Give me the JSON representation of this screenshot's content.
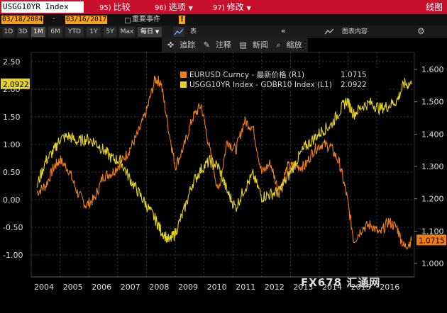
{
  "header": {
    "ticker": "USGG10YR Index",
    "menu": [
      {
        "num": "95)",
        "label": "比较"
      },
      {
        "num": "96)",
        "label": "选项"
      },
      {
        "num": "97)",
        "label": "修改"
      }
    ],
    "right_label": "线图"
  },
  "dates": {
    "start": "03/18/2004",
    "end": "03/16/2017",
    "dash": "-",
    "event_label": "重要事件"
  },
  "ranges": [
    "1D",
    "3D",
    "1M",
    "6M",
    "YTD",
    "1Y",
    "5Y",
    "Max"
  ],
  "active_range": "1M",
  "frequency": "每日",
  "table_label": "表",
  "legend_button": "图表内容",
  "toolbar": {
    "track": "追踪",
    "note": "注释",
    "news": "新闻",
    "zoom": "缩放"
  },
  "watermark": "FX678 汇通网",
  "colors": {
    "eurusd": "#f07d14",
    "gdbr": "#e6d220",
    "left_tag_bg": "#e6d220",
    "right_tag_bg": "#f07d14"
  },
  "chart_data": {
    "type": "line",
    "x_ticks": [
      "2004",
      "2005",
      "2006",
      "2007",
      "2008",
      "2009",
      "2010",
      "2011",
      "2012",
      "2013",
      "2014",
      "2015",
      "2016"
    ],
    "x": [
      2004.2,
      2004.5,
      2004.8,
      2005.0,
      2005.3,
      2005.6,
      2005.9,
      2006.2,
      2006.5,
      2006.8,
      2007.1,
      2007.4,
      2007.7,
      2008.0,
      2008.3,
      2008.5,
      2008.8,
      2009.0,
      2009.3,
      2009.6,
      2009.9,
      2010.2,
      2010.5,
      2010.8,
      2011.1,
      2011.4,
      2011.7,
      2012.0,
      2012.3,
      2012.6,
      2012.9,
      2013.2,
      2013.5,
      2013.8,
      2014.1,
      2014.4,
      2014.7,
      2014.95,
      2015.2,
      2015.5,
      2015.8,
      2016.1,
      2016.4,
      2016.7,
      2016.95,
      2017.2
    ],
    "series": [
      {
        "name": "EURUSD Curncy - 最新价格 (R1)",
        "axis": "right",
        "current": "1.0715",
        "values": [
          1.22,
          1.24,
          1.3,
          1.32,
          1.29,
          1.22,
          1.18,
          1.2,
          1.27,
          1.28,
          1.31,
          1.35,
          1.4,
          1.47,
          1.57,
          1.56,
          1.4,
          1.3,
          1.36,
          1.45,
          1.49,
          1.35,
          1.22,
          1.38,
          1.35,
          1.44,
          1.42,
          1.28,
          1.31,
          1.22,
          1.3,
          1.3,
          1.3,
          1.35,
          1.37,
          1.36,
          1.31,
          1.21,
          1.07,
          1.11,
          1.12,
          1.09,
          1.13,
          1.11,
          1.05,
          1.07
        ]
      },
      {
        "name": "USGG10YR Index - GDBR10 Index (L1)",
        "axis": "left",
        "current": "2.0922",
        "values": [
          0.25,
          0.7,
          0.9,
          1.1,
          1.15,
          1.05,
          1.1,
          1.05,
          0.9,
          0.75,
          0.7,
          0.4,
          0.15,
          -0.1,
          -0.35,
          -0.55,
          -0.75,
          -0.6,
          -0.2,
          0.3,
          0.55,
          0.7,
          0.6,
          0.15,
          -0.15,
          0.2,
          0.45,
          0.05,
          0.1,
          0.15,
          0.4,
          0.7,
          0.95,
          1.1,
          1.25,
          1.35,
          1.6,
          1.8,
          1.55,
          1.7,
          1.75,
          1.65,
          1.7,
          1.8,
          2.1,
          2.09
        ]
      }
    ],
    "y_left": {
      "ticks": [
        "2.50",
        "2.00",
        "1.50",
        "1.00",
        "0.50",
        "0.00",
        "-0.50",
        "-1.00"
      ],
      "min": -1.0,
      "max": 2.5
    },
    "y_right": {
      "ticks": [
        "1.600",
        "1.500",
        "1.400",
        "1.300",
        "1.200",
        "1.100",
        "1.000"
      ],
      "min": 1.0,
      "max": 1.6
    },
    "legend": {
      "position": "top-center"
    },
    "grid": true
  }
}
